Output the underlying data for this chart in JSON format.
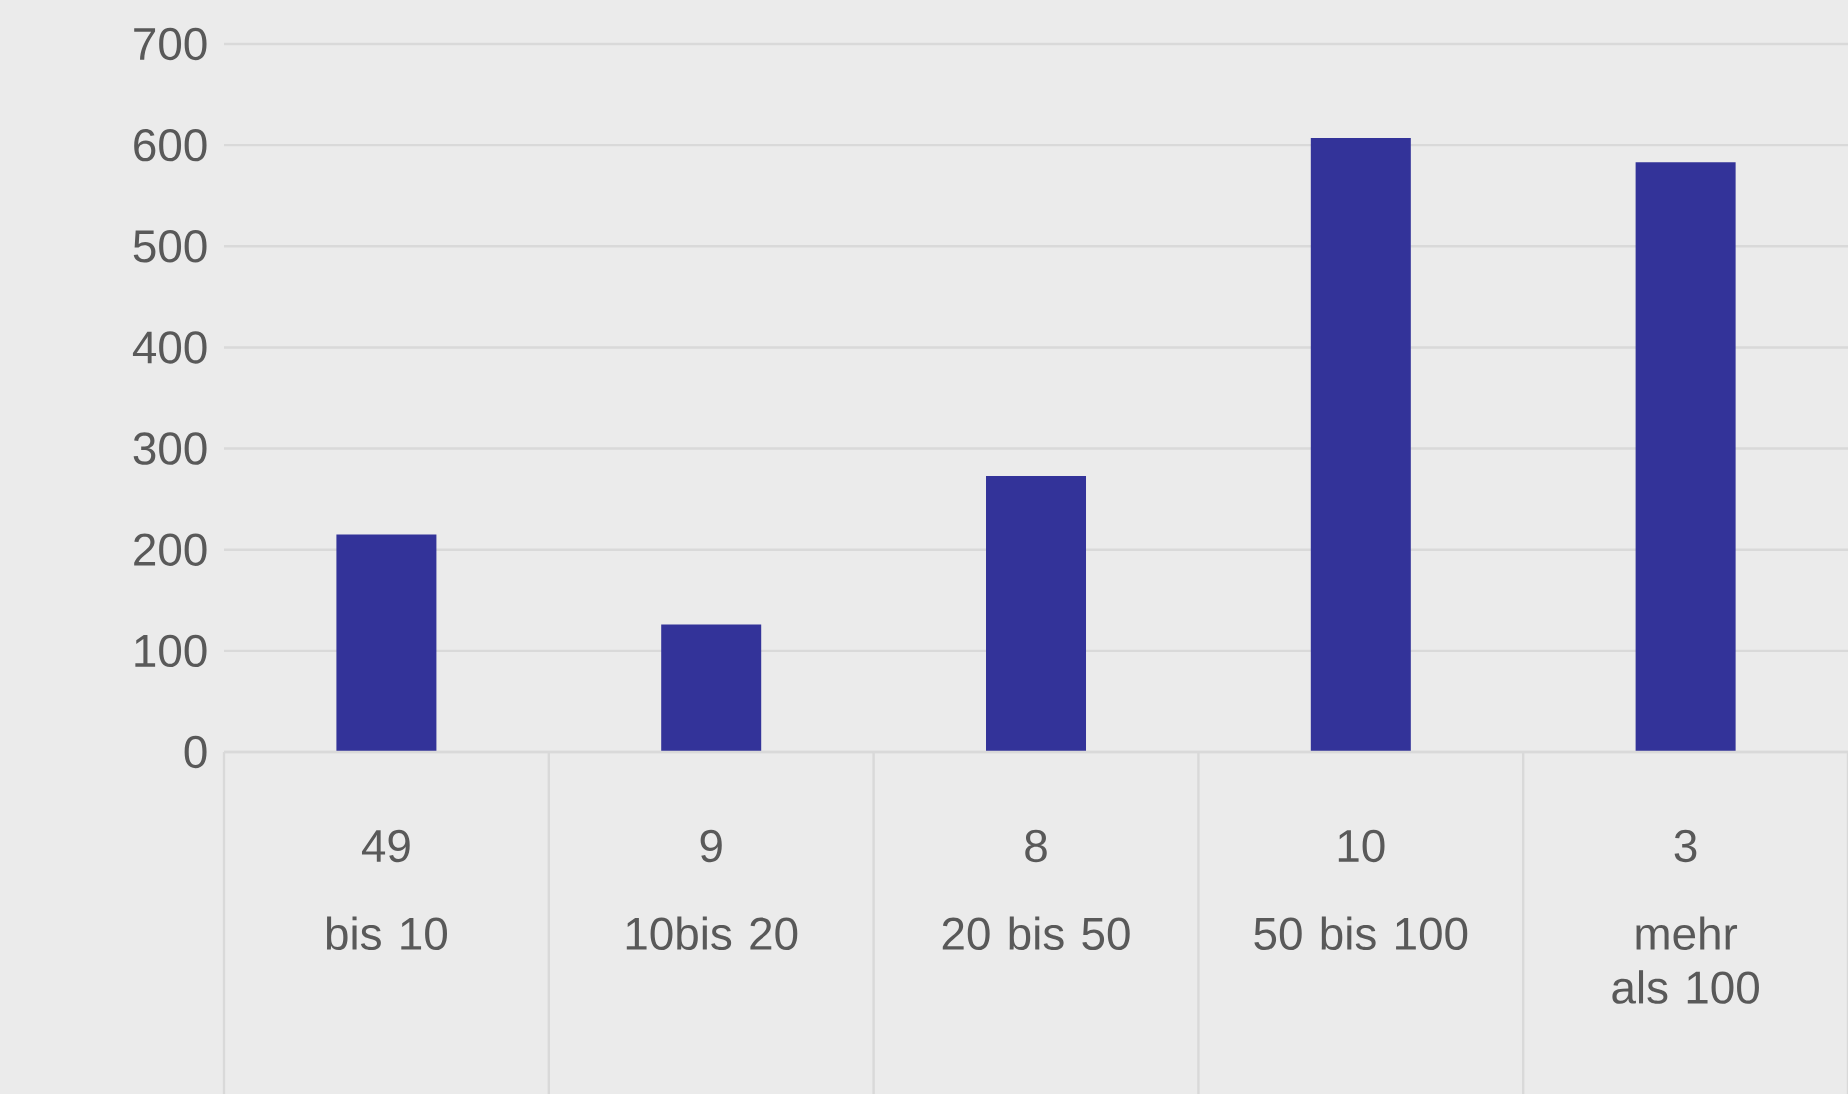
{
  "chart_data": {
    "type": "bar",
    "categories": [
      "bis 10",
      "10bis 20",
      "20 bis 50",
      "50 bis 100",
      "mehr als 100"
    ],
    "values": [
      215,
      126,
      273,
      607,
      583
    ],
    "color": "#333399",
    "ylim": [
      0,
      700
    ],
    "yticks": [
      0,
      100,
      200,
      300,
      400,
      500,
      600,
      700
    ],
    "grid": "y",
    "annotations": [
      "49",
      "9",
      "8",
      "10",
      "3"
    ]
  }
}
